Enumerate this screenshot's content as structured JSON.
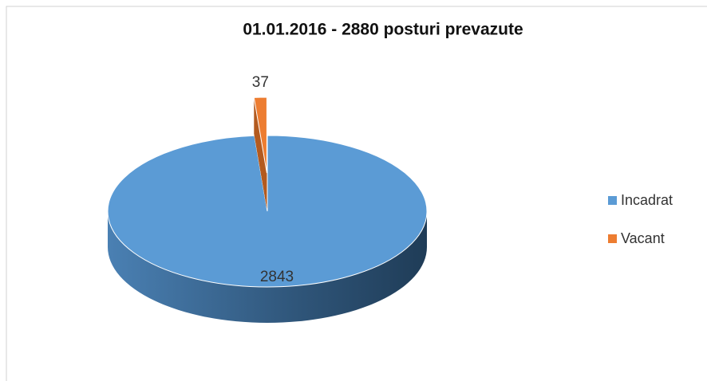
{
  "chart_data": {
    "type": "pie3d",
    "title": "01.01.2016 - 2880 posturi prevazute",
    "categories": [
      "Incadrat",
      "Vacant"
    ],
    "values": [
      2843,
      37
    ],
    "colors": [
      "#5b9bd5",
      "#ed7d31"
    ],
    "legend": "right",
    "explode": [
      false,
      true
    ]
  }
}
